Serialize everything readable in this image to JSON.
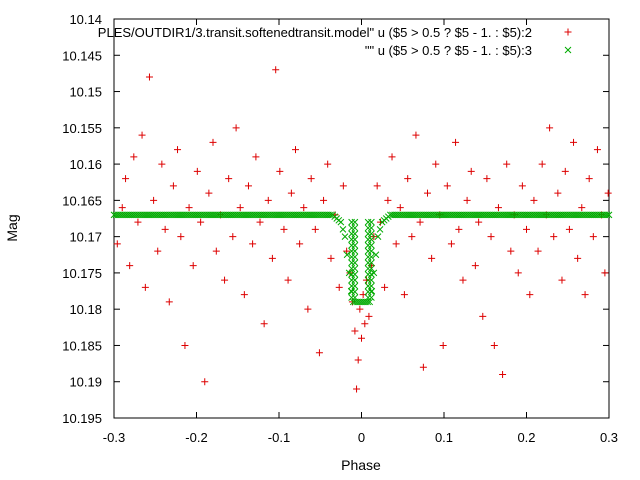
{
  "chart_data": {
    "type": "scatter",
    "xlabel": "Phase",
    "ylabel": "Mag",
    "xlim": [
      -0.3,
      0.3
    ],
    "ylim": [
      10.14,
      10.195
    ],
    "y_inverted": true,
    "grid": false,
    "legend_position": "top-right",
    "x_ticks": [
      "-0.3",
      "-0.2",
      "-0.1",
      "0",
      "0.1",
      "0.2",
      "0.3"
    ],
    "y_ticks": [
      "10.14",
      "10.145",
      "10.15",
      "10.155",
      "10.16",
      "10.165",
      "10.17",
      "10.175",
      "10.18",
      "10.185",
      "10.19",
      "10.195"
    ],
    "series": [
      {
        "name": "PLES/OUTDIR1/3.transit.softenedtransit.model\" u ($5 > 0.5 ? $5 - 1. : $5):2",
        "marker": "+",
        "color": "#dd0000",
        "points": [
          [
            -0.296,
            10.171
          ],
          [
            -0.29,
            10.166
          ],
          [
            -0.286,
            10.162
          ],
          [
            -0.281,
            10.174
          ],
          [
            -0.276,
            10.159
          ],
          [
            -0.271,
            10.168
          ],
          [
            -0.266,
            10.156
          ],
          [
            -0.262,
            10.177
          ],
          [
            -0.257,
            10.148
          ],
          [
            -0.252,
            10.165
          ],
          [
            -0.247,
            10.172
          ],
          [
            -0.242,
            10.16
          ],
          [
            -0.238,
            10.169
          ],
          [
            -0.233,
            10.179
          ],
          [
            -0.228,
            10.163
          ],
          [
            -0.223,
            10.158
          ],
          [
            -0.219,
            10.17
          ],
          [
            -0.214,
            10.185
          ],
          [
            -0.209,
            10.166
          ],
          [
            -0.204,
            10.174
          ],
          [
            -0.199,
            10.161
          ],
          [
            -0.195,
            10.168
          ],
          [
            -0.19,
            10.19
          ],
          [
            -0.185,
            10.164
          ],
          [
            -0.18,
            10.157
          ],
          [
            -0.176,
            10.172
          ],
          [
            -0.171,
            10.167
          ],
          [
            -0.166,
            10.176
          ],
          [
            -0.161,
            10.162
          ],
          [
            -0.156,
            10.17
          ],
          [
            -0.152,
            10.155
          ],
          [
            -0.147,
            10.166
          ],
          [
            -0.142,
            10.178
          ],
          [
            -0.137,
            10.163
          ],
          [
            -0.132,
            10.171
          ],
          [
            -0.128,
            10.159
          ],
          [
            -0.123,
            10.168
          ],
          [
            -0.118,
            10.182
          ],
          [
            -0.113,
            10.165
          ],
          [
            -0.108,
            10.173
          ],
          [
            -0.104,
            10.147
          ],
          [
            -0.099,
            10.161
          ],
          [
            -0.094,
            10.169
          ],
          [
            -0.089,
            10.176
          ],
          [
            -0.085,
            10.164
          ],
          [
            -0.08,
            10.158
          ],
          [
            -0.075,
            10.171
          ],
          [
            -0.07,
            10.166
          ],
          [
            -0.065,
            10.18
          ],
          [
            -0.061,
            10.162
          ],
          [
            -0.056,
            10.169
          ],
          [
            -0.051,
            10.186
          ],
          [
            -0.046,
            10.165
          ],
          [
            -0.041,
            10.16
          ],
          [
            -0.037,
            10.173
          ],
          [
            -0.032,
            10.167
          ],
          [
            -0.027,
            10.177
          ],
          [
            -0.022,
            10.163
          ],
          [
            -0.018,
            10.172
          ],
          [
            -0.014,
            10.175
          ],
          [
            -0.011,
            10.179
          ],
          [
            -0.008,
            10.183
          ],
          [
            -0.006,
            10.191
          ],
          [
            -0.004,
            10.187
          ],
          [
            -0.002,
            10.18
          ],
          [
            0.0,
            10.184
          ],
          [
            0.002,
            10.178
          ],
          [
            0.004,
            10.182
          ],
          [
            0.006,
            10.176
          ],
          [
            0.009,
            10.181
          ],
          [
            0.012,
            10.174
          ],
          [
            0.015,
            10.17
          ],
          [
            0.019,
            10.163
          ],
          [
            0.023,
            10.168
          ],
          [
            0.028,
            10.177
          ],
          [
            0.032,
            10.165
          ],
          [
            0.037,
            10.159
          ],
          [
            0.042,
            10.171
          ],
          [
            0.047,
            10.166
          ],
          [
            0.052,
            10.178
          ],
          [
            0.056,
            10.162
          ],
          [
            0.061,
            10.17
          ],
          [
            0.066,
            10.156
          ],
          [
            0.071,
            10.168
          ],
          [
            0.075,
            10.188
          ],
          [
            0.08,
            10.164
          ],
          [
            0.085,
            10.173
          ],
          [
            0.09,
            10.16
          ],
          [
            0.095,
            10.167
          ],
          [
            0.099,
            10.185
          ],
          [
            0.104,
            10.163
          ],
          [
            0.109,
            10.171
          ],
          [
            0.114,
            10.157
          ],
          [
            0.118,
            10.169
          ],
          [
            0.123,
            10.176
          ],
          [
            0.128,
            10.165
          ],
          [
            0.133,
            10.161
          ],
          [
            0.138,
            10.174
          ],
          [
            0.142,
            10.168
          ],
          [
            0.147,
            10.181
          ],
          [
            0.152,
            10.162
          ],
          [
            0.157,
            10.17
          ],
          [
            0.161,
            10.185
          ],
          [
            0.166,
            10.166
          ],
          [
            0.171,
            10.189
          ],
          [
            0.176,
            10.16
          ],
          [
            0.181,
            10.172
          ],
          [
            0.185,
            10.167
          ],
          [
            0.19,
            10.175
          ],
          [
            0.195,
            10.163
          ],
          [
            0.2,
            10.169
          ],
          [
            0.204,
            10.178
          ],
          [
            0.209,
            10.165
          ],
          [
            0.214,
            10.172
          ],
          [
            0.219,
            10.16
          ],
          [
            0.224,
            10.167
          ],
          [
            0.228,
            10.155
          ],
          [
            0.233,
            10.17
          ],
          [
            0.238,
            10.164
          ],
          [
            0.243,
            10.176
          ],
          [
            0.247,
            10.161
          ],
          [
            0.252,
            10.169
          ],
          [
            0.257,
            10.157
          ],
          [
            0.262,
            10.173
          ],
          [
            0.267,
            10.166
          ],
          [
            0.271,
            10.178
          ],
          [
            0.276,
            10.162
          ],
          [
            0.281,
            10.17
          ],
          [
            0.286,
            10.158
          ],
          [
            0.291,
            10.167
          ],
          [
            0.295,
            10.175
          ],
          [
            0.299,
            10.164
          ]
        ]
      },
      {
        "name": "\"\" u ($5 > 0.5 ? $5 - 1. : $5):3",
        "marker": "x",
        "color": "#00aa00",
        "points": [
          [
            -0.3,
            10.167
          ],
          [
            -0.035,
            10.167
          ],
          [
            -0.025,
            10.168
          ],
          [
            -0.02,
            10.17
          ],
          [
            -0.017,
            10.173
          ],
          [
            -0.014,
            10.176
          ],
          [
            -0.012,
            10.178
          ],
          [
            -0.01,
            10.179
          ],
          [
            0.0,
            10.179
          ],
          [
            0.01,
            10.179
          ],
          [
            0.012,
            10.178
          ],
          [
            0.014,
            10.176
          ],
          [
            0.017,
            10.173
          ],
          [
            0.02,
            10.17
          ],
          [
            0.025,
            10.168
          ],
          [
            0.035,
            10.167
          ],
          [
            0.3,
            10.167
          ]
        ]
      }
    ]
  }
}
